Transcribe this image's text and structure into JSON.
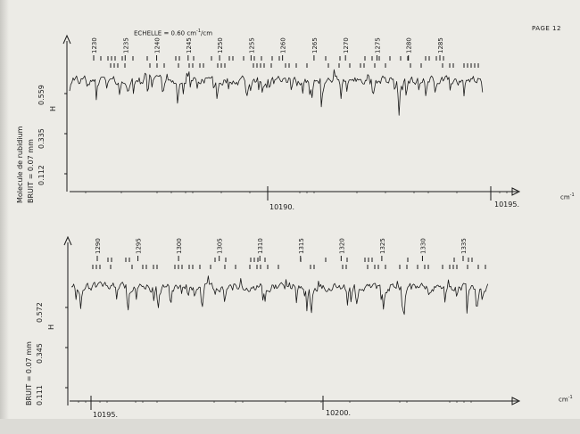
{
  "page_label": "PAGE 12",
  "scale_label": {
    "prefix": "ECHELLE = 0.60 cm",
    "sup": "-1",
    "suffix": "/cm"
  },
  "chart_data": [
    {
      "type": "line",
      "panel": "upper",
      "xaxis_ticks": [
        "10190.",
        "10195."
      ],
      "x_unit": {
        "base": "cm",
        "sup": "-1"
      },
      "y_ticks": [
        "0.112",
        "0.335",
        "0.559"
      ],
      "y_marker": "H",
      "side_labels": [
        "Molecule de rubidium",
        "BRUIT = 0.07 mm"
      ],
      "line_numbers": [
        "1230",
        "1235",
        "1240",
        "1245",
        "1250",
        "1255",
        "1260",
        "1265",
        "1270",
        "1275",
        "1280",
        "1285"
      ],
      "trace_color": "#1a1a1a"
    },
    {
      "type": "line",
      "panel": "lower",
      "xaxis_ticks": [
        "10195.",
        "10200."
      ],
      "x_unit": {
        "base": "cm",
        "sup": "-1"
      },
      "y_ticks": [
        "0.111",
        "0.345",
        "0.572"
      ],
      "y_marker": "H",
      "side_labels": [
        "BRUIT = 0.07 mm"
      ],
      "line_numbers": [
        "1290",
        "1295",
        "1300",
        "1305",
        "1310",
        "1315",
        "1320",
        "1325",
        "1330",
        "1335"
      ],
      "trace_color": "#1a1a1a"
    }
  ]
}
